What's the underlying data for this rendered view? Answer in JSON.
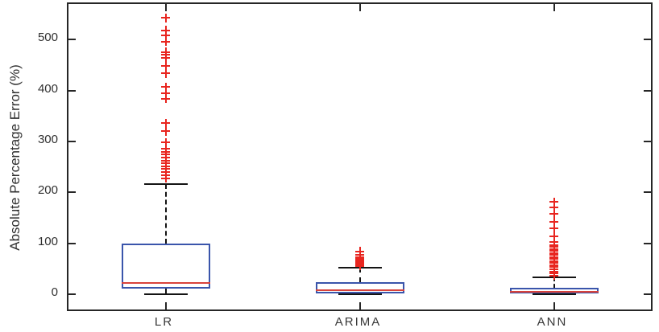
{
  "figure": {
    "background": "#ffffff",
    "axis_color": "#262626",
    "box_edge_color": "#3a55ab",
    "median_color": "#d8423b",
    "outlier_color": "#e8251f",
    "whisker_color": "#141414"
  },
  "chart_data": {
    "type": "boxplot",
    "title": "",
    "xlabel": "",
    "ylabel": "Absolute Percentage Error (%)",
    "categories": [
      "LR",
      "ARIMA",
      "ANN"
    ],
    "yticks": [
      0,
      100,
      200,
      300,
      400,
      500
    ],
    "ylim": [
      -30,
      570
    ],
    "grid": false,
    "legend": null,
    "outlier_marker": "plus",
    "series": [
      {
        "name": "LR",
        "whisker_low": 0,
        "q1": 11,
        "median": 22,
        "q3": 99,
        "whisker_high": 217,
        "outliers": [
          228,
          234,
          240,
          246,
          251,
          257,
          262,
          268,
          274,
          280,
          286,
          298,
          320,
          336,
          384,
          395,
          407,
          434,
          449,
          464,
          470,
          476,
          496,
          509,
          518,
          543
        ]
      },
      {
        "name": "ARIMA",
        "whisker_low": 0,
        "q1": 1,
        "median": 8,
        "q3": 23,
        "whisker_high": 52,
        "outliers": [
          56,
          59,
          62,
          64,
          67,
          70,
          73,
          77,
          84
        ]
      },
      {
        "name": "ANN",
        "whisker_low": 0,
        "q1": 1,
        "median": 5,
        "q3": 12,
        "whisker_high": 33,
        "outliers": [
          37,
          41,
          45,
          49,
          53,
          57,
          61,
          65,
          69,
          73,
          77,
          81,
          85,
          89,
          93,
          97,
          102,
          113,
          130,
          142,
          158,
          170,
          181
        ]
      }
    ]
  }
}
